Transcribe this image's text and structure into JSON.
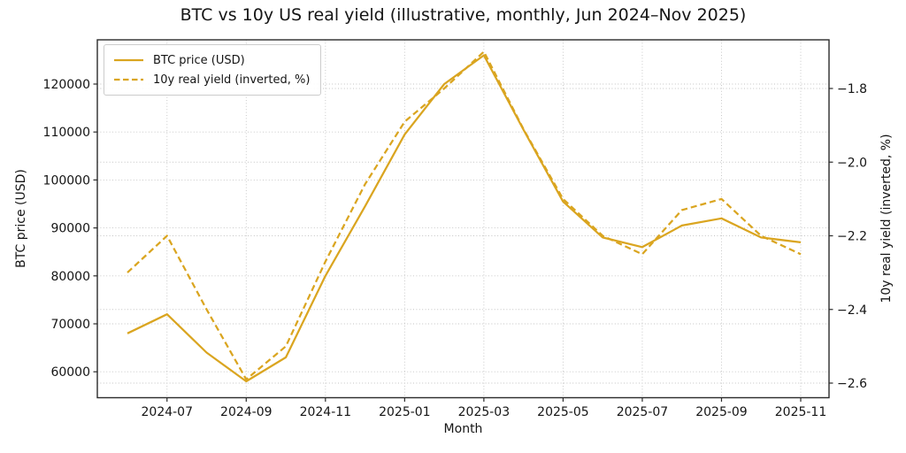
{
  "colors": {
    "series": "#DAA520",
    "grid": "#c3c3c3",
    "spine": "#2b2b2b",
    "text": "#151515",
    "background": "#ffffff"
  },
  "chart_data": {
    "type": "line",
    "title": "BTC vs 10y US real yield (illustrative, monthly, Jun 2024–Nov 2025)",
    "xlabel": "Month",
    "ylabel_left": "BTC price (USD)",
    "ylabel_right": "10y real yield (inverted, %)",
    "grid": true,
    "legend_position": "upper left",
    "x": [
      "2024-06",
      "2024-07",
      "2024-08",
      "2024-09",
      "2024-10",
      "2024-11",
      "2024-12",
      "2025-01",
      "2025-02",
      "2025-03",
      "2025-04",
      "2025-05",
      "2025-06",
      "2025-07",
      "2025-08",
      "2025-09",
      "2025-10",
      "2025-11"
    ],
    "x_tick_labels": [
      "2024-07",
      "2024-09",
      "2024-11",
      "2025-01",
      "2025-03",
      "2025-05",
      "2025-07",
      "2025-09",
      "2025-11"
    ],
    "left_axis": {
      "ticks": [
        60000,
        70000,
        80000,
        90000,
        100000,
        110000,
        120000
      ],
      "tick_labels": [
        "60000",
        "70000",
        "80000",
        "90000",
        "100000",
        "110000",
        "120000"
      ],
      "range": [
        54500,
        129200
      ]
    },
    "right_axis": {
      "ticks": [
        -1.8,
        -2.0,
        -2.2,
        -2.4,
        -2.6
      ],
      "tick_labels": [
        "−1.8",
        "−2.0",
        "−2.2",
        "−2.4",
        "−2.6"
      ],
      "range": [
        -2.64,
        -1.67
      ]
    },
    "series": [
      {
        "name": "BTC price (USD)",
        "axis": "left",
        "style": "solid",
        "values": [
          68000,
          72000,
          64000,
          58000,
          63000,
          80000,
          94500,
          109500,
          120000,
          126000,
          110500,
          95500,
          88000,
          86000,
          90500,
          92000,
          88000,
          87000
        ]
      },
      {
        "name": "10y real yield (inverted, %)",
        "axis": "right",
        "style": "dashed",
        "values": [
          -2.3,
          -2.2,
          -2.4,
          -2.59,
          -2.5,
          -2.27,
          -2.06,
          -1.89,
          -1.8,
          -1.7,
          -1.91,
          -2.1,
          -2.2,
          -2.25,
          -2.13,
          -2.1,
          -2.2,
          -2.25
        ]
      }
    ]
  }
}
